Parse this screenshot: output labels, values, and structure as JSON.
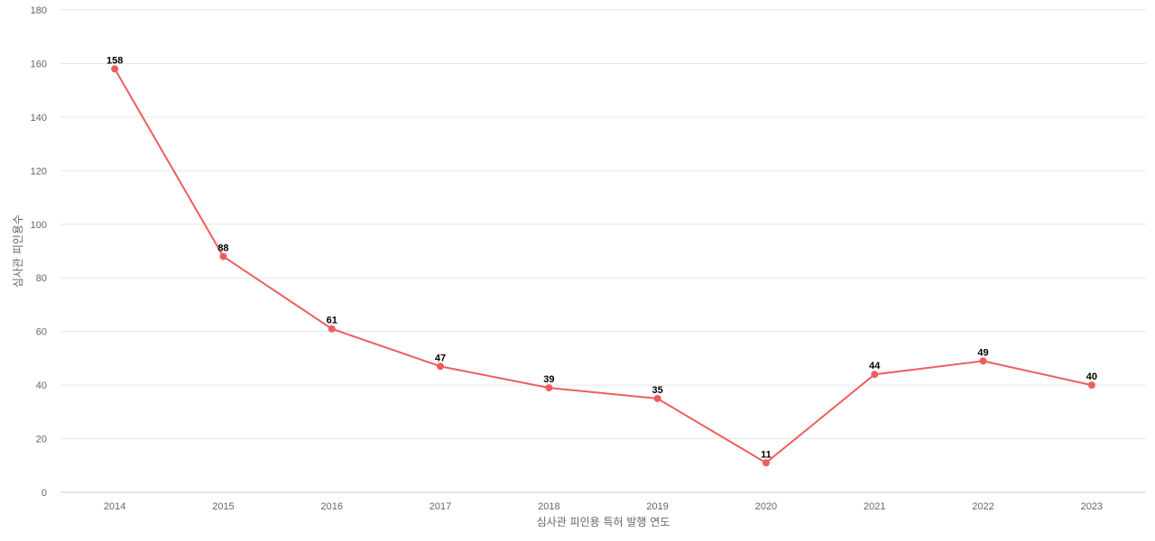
{
  "chart_data": {
    "type": "line",
    "categories": [
      "2014",
      "2015",
      "2016",
      "2017",
      "2018",
      "2019",
      "2020",
      "2021",
      "2022",
      "2023"
    ],
    "series": [
      {
        "name": "",
        "values": [
          158,
          88,
          61,
          47,
          39,
          35,
          11,
          44,
          49,
          40
        ],
        "color": "#ee5d5d"
      }
    ],
    "xlabel": "심사관 피인용 특허 발행 연도",
    "ylabel": "심사관 피인용수",
    "ylim": [
      0,
      180
    ],
    "yticks": [
      0,
      20,
      40,
      60,
      80,
      100,
      120,
      140,
      160,
      180
    ],
    "grid": true,
    "data_labels": true
  }
}
